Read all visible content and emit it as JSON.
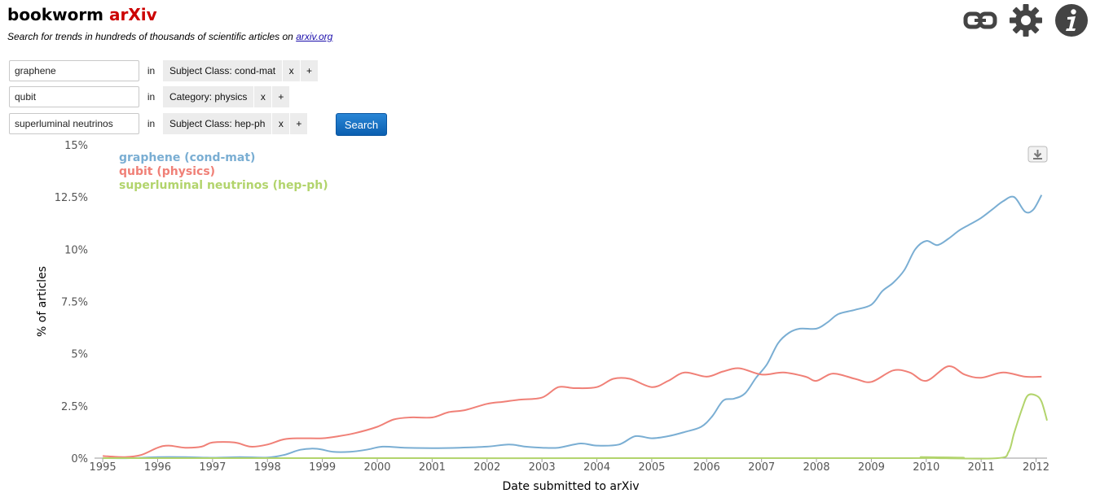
{
  "header": {
    "brand_main": "bookworm",
    "brand_accent": "arXiv",
    "accent_color": "#cc0000",
    "tagline_prefix": "Search for trends in hundreds of thousands of scientific articles on ",
    "tagline_link": "arxiv.org",
    "icons": [
      "link-icon",
      "gear-icon",
      "info-icon"
    ]
  },
  "queries": [
    {
      "term": "graphene",
      "in_label": "in",
      "filter_label": "Subject Class: cond-mat",
      "remove_label": "x",
      "add_label": "+"
    },
    {
      "term": "qubit",
      "in_label": "in",
      "filter_label": "Category: physics",
      "remove_label": "x",
      "add_label": "+"
    },
    {
      "term": "superluminal neutrinos",
      "in_label": "in",
      "filter_label": "Subject Class: hep-ph",
      "remove_label": "x",
      "add_label": "+"
    }
  ],
  "search_label": "Search",
  "chart_data": {
    "type": "line",
    "xlabel": "Date submitted to arXiv",
    "ylabel": "% of articles",
    "xlim": [
      1994.85,
      2012.2
    ],
    "ylim": [
      0,
      15
    ],
    "x_ticks": [
      1995,
      1996,
      1997,
      1998,
      1999,
      2000,
      2001,
      2002,
      2003,
      2004,
      2005,
      2006,
      2007,
      2008,
      2009,
      2010,
      2011,
      2012
    ],
    "x_tick_labels": [
      "1995",
      "1996",
      "1997",
      "1998",
      "1999",
      "2000",
      "2001",
      "2002",
      "2003",
      "2004",
      "2005",
      "2006",
      "2007",
      "2008",
      "2009",
      "2010",
      "2011",
      "2012"
    ],
    "y_ticks": [
      0,
      2.5,
      5,
      7.5,
      10,
      12.5,
      15
    ],
    "y_tick_labels": [
      "0%",
      "2.5%",
      "5%",
      "7.5%",
      "10%",
      "12.5%",
      "15%"
    ],
    "grid": false,
    "legend_position": "top-left",
    "series": [
      {
        "name": "graphene (cond-mat)",
        "color": "#7aaed3",
        "points": [
          [
            1995.0,
            0.0
          ],
          [
            1995.5,
            0.0
          ],
          [
            1996.0,
            0.05
          ],
          [
            1996.5,
            0.05
          ],
          [
            1997.0,
            0.02
          ],
          [
            1997.5,
            0.05
          ],
          [
            1998.0,
            0.03
          ],
          [
            1998.3,
            0.15
          ],
          [
            1998.6,
            0.4
          ],
          [
            1998.9,
            0.45
          ],
          [
            1999.2,
            0.3
          ],
          [
            1999.5,
            0.3
          ],
          [
            1999.8,
            0.4
          ],
          [
            2000.1,
            0.55
          ],
          [
            2000.5,
            0.5
          ],
          [
            2001.0,
            0.48
          ],
          [
            2001.5,
            0.5
          ],
          [
            2002.0,
            0.55
          ],
          [
            2002.4,
            0.65
          ],
          [
            2002.7,
            0.55
          ],
          [
            2003.0,
            0.5
          ],
          [
            2003.3,
            0.5
          ],
          [
            2003.7,
            0.7
          ],
          [
            2004.0,
            0.6
          ],
          [
            2004.4,
            0.65
          ],
          [
            2004.7,
            1.05
          ],
          [
            2005.0,
            0.95
          ],
          [
            2005.3,
            1.05
          ],
          [
            2005.6,
            1.25
          ],
          [
            2005.9,
            1.5
          ],
          [
            2006.1,
            2.0
          ],
          [
            2006.3,
            2.75
          ],
          [
            2006.5,
            2.85
          ],
          [
            2006.7,
            3.1
          ],
          [
            2006.9,
            3.85
          ],
          [
            2007.1,
            4.5
          ],
          [
            2007.3,
            5.5
          ],
          [
            2007.5,
            6.0
          ],
          [
            2007.7,
            6.2
          ],
          [
            2008.0,
            6.2
          ],
          [
            2008.2,
            6.5
          ],
          [
            2008.4,
            6.9
          ],
          [
            2008.7,
            7.1
          ],
          [
            2009.0,
            7.35
          ],
          [
            2009.2,
            8.0
          ],
          [
            2009.4,
            8.4
          ],
          [
            2009.6,
            9.0
          ],
          [
            2009.8,
            10.0
          ],
          [
            2010.0,
            10.4
          ],
          [
            2010.2,
            10.2
          ],
          [
            2010.4,
            10.5
          ],
          [
            2010.6,
            10.9
          ],
          [
            2010.8,
            11.2
          ],
          [
            2011.0,
            11.5
          ],
          [
            2011.2,
            11.9
          ],
          [
            2011.4,
            12.3
          ],
          [
            2011.6,
            12.5
          ],
          [
            2011.8,
            11.8
          ],
          [
            2011.95,
            11.9
          ],
          [
            2012.1,
            12.6
          ]
        ]
      },
      {
        "name": "qubit (physics)",
        "color": "#f08077",
        "points": [
          [
            1995.0,
            0.1
          ],
          [
            1995.4,
            0.05
          ],
          [
            1995.7,
            0.15
          ],
          [
            1996.0,
            0.5
          ],
          [
            1996.2,
            0.6
          ],
          [
            1996.5,
            0.5
          ],
          [
            1996.8,
            0.55
          ],
          [
            1997.0,
            0.75
          ],
          [
            1997.4,
            0.75
          ],
          [
            1997.7,
            0.55
          ],
          [
            1998.0,
            0.65
          ],
          [
            1998.3,
            0.9
          ],
          [
            1998.6,
            0.95
          ],
          [
            1999.0,
            0.95
          ],
          [
            1999.3,
            1.05
          ],
          [
            1999.6,
            1.2
          ],
          [
            2000.0,
            1.5
          ],
          [
            2000.3,
            1.85
          ],
          [
            2000.6,
            1.95
          ],
          [
            2001.0,
            1.95
          ],
          [
            2001.3,
            2.2
          ],
          [
            2001.6,
            2.3
          ],
          [
            2002.0,
            2.6
          ],
          [
            2002.3,
            2.7
          ],
          [
            2002.6,
            2.8
          ],
          [
            2003.0,
            2.9
          ],
          [
            2003.3,
            3.4
          ],
          [
            2003.6,
            3.35
          ],
          [
            2004.0,
            3.4
          ],
          [
            2004.3,
            3.8
          ],
          [
            2004.6,
            3.8
          ],
          [
            2005.0,
            3.4
          ],
          [
            2005.3,
            3.7
          ],
          [
            2005.6,
            4.1
          ],
          [
            2006.0,
            3.9
          ],
          [
            2006.3,
            4.15
          ],
          [
            2006.6,
            4.3
          ],
          [
            2007.0,
            4.0
          ],
          [
            2007.4,
            4.1
          ],
          [
            2007.8,
            3.9
          ],
          [
            2008.0,
            3.7
          ],
          [
            2008.3,
            4.05
          ],
          [
            2008.7,
            3.8
          ],
          [
            2009.0,
            3.65
          ],
          [
            2009.4,
            4.2
          ],
          [
            2009.7,
            4.1
          ],
          [
            2010.0,
            3.7
          ],
          [
            2010.4,
            4.4
          ],
          [
            2010.7,
            4.0
          ],
          [
            2011.0,
            3.85
          ],
          [
            2011.4,
            4.1
          ],
          [
            2011.8,
            3.9
          ],
          [
            2012.1,
            3.9
          ]
        ]
      },
      {
        "name": "superluminal neutrinos (hep-ph)",
        "color": "#b2d46c",
        "points": [
          [
            1995.0,
            0.0
          ],
          [
            2009.5,
            0.0
          ],
          [
            2009.9,
            0.05
          ],
          [
            2010.2,
            0.0
          ],
          [
            2011.3,
            0.0
          ],
          [
            2011.5,
            0.3
          ],
          [
            2011.6,
            1.2
          ],
          [
            2011.75,
            2.4
          ],
          [
            2011.85,
            3.0
          ],
          [
            2012.0,
            3.0
          ],
          [
            2012.1,
            2.7
          ],
          [
            2012.2,
            1.8
          ]
        ]
      }
    ]
  }
}
